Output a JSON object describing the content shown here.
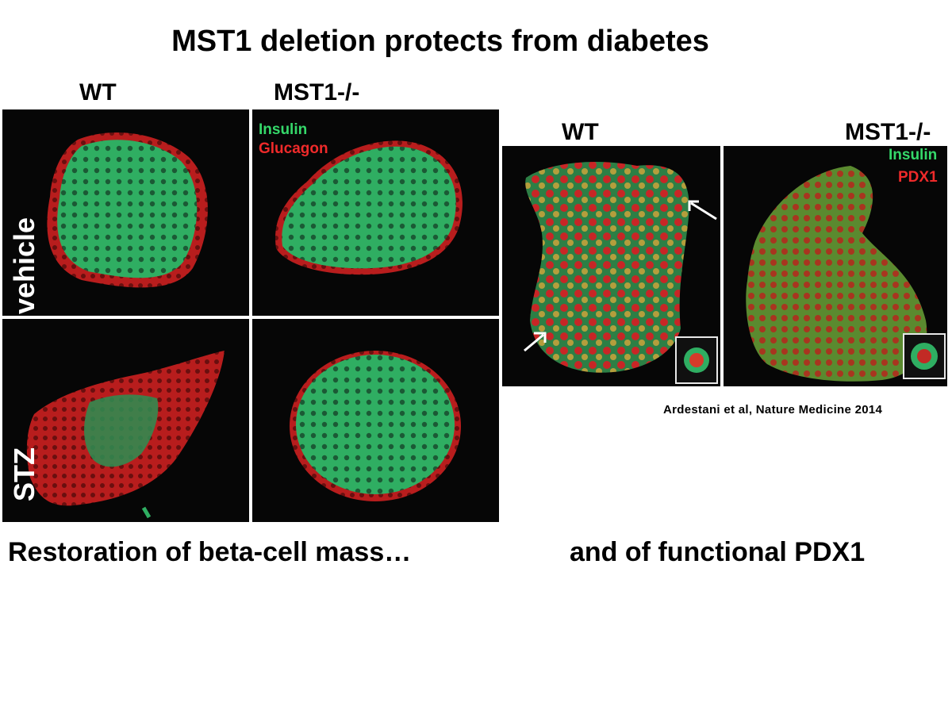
{
  "title": "MST1 deletion protects from diabetes",
  "left_figure": {
    "columns": [
      "WT",
      "MST1-/-"
    ],
    "rows": [
      "vehicle",
      "STZ"
    ],
    "legend": [
      {
        "label": "Insulin",
        "color": "#35d86a"
      },
      {
        "label": "Glucagon",
        "color": "#ef2a2a"
      }
    ]
  },
  "right_figure": {
    "columns": [
      "WT",
      "MST1-/-"
    ],
    "legend": [
      {
        "label": "Insulin",
        "color": "#35d86a"
      },
      {
        "label": "PDX1",
        "color": "#ef2a2a"
      }
    ]
  },
  "citation": "Ardestani et al, Nature Medicine 2014",
  "captions": {
    "left": "Restoration of beta-cell mass…",
    "right": "and of functional PDX1"
  },
  "colors": {
    "insulin_green": "#35d86a",
    "red_stain": "#ef2a2a",
    "panel_bg": "#060606",
    "inset_border": "#e8e8e8"
  },
  "icons": [
    "arrow-icon"
  ]
}
